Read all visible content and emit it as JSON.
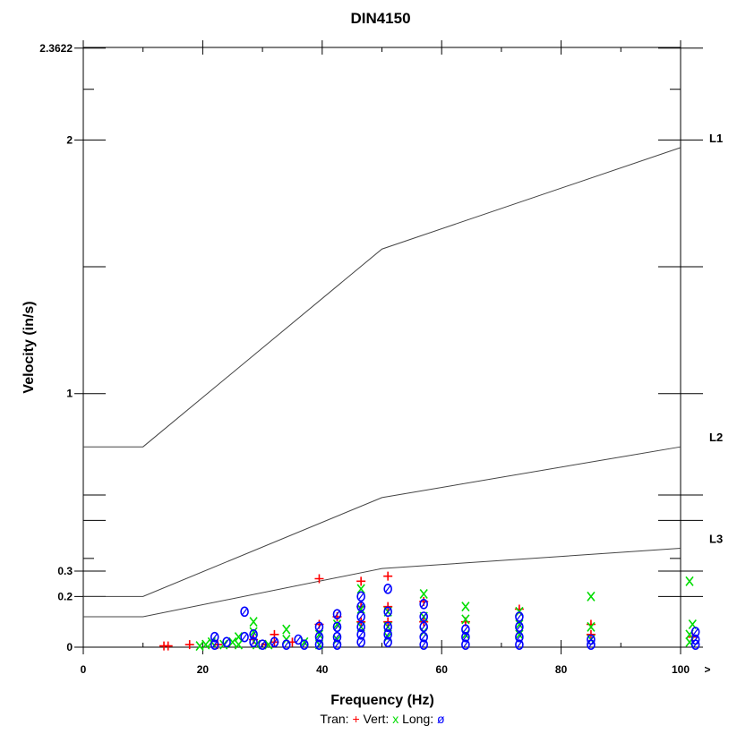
{
  "chart_data": {
    "type": "scatter",
    "title": "DIN4150",
    "xlabel": "Frequency (Hz)",
    "ylabel": "Velocity (in/s)",
    "xlim": [
      0,
      100
    ],
    "ylim": [
      0,
      2.3622
    ],
    "x_ticks": [
      "0",
      "20",
      "40",
      "60",
      "80",
      "100"
    ],
    "x_overflow_label": ">",
    "y_ticks": [
      {
        "value": 0,
        "label": "0"
      },
      {
        "value": 0.2,
        "label": "0.2"
      },
      {
        "value": 0.3,
        "label": "0.3"
      },
      {
        "value": 1,
        "label": "1"
      },
      {
        "value": 2,
        "label": "2"
      },
      {
        "value": 2.3622,
        "label": "2.3622"
      }
    ],
    "y_minor_ticks": [
      0.5,
      0.6,
      1.5
    ],
    "limit_lines": [
      {
        "name": "L1",
        "x": [
          0,
          10,
          50,
          100
        ],
        "y": [
          0.79,
          0.79,
          1.57,
          1.97
        ]
      },
      {
        "name": "L2",
        "x": [
          0,
          10,
          50,
          100
        ],
        "y": [
          0.2,
          0.2,
          0.59,
          0.79
        ]
      },
      {
        "name": "L3",
        "x": [
          0,
          10,
          50,
          100
        ],
        "y": [
          0.12,
          0.12,
          0.31,
          0.39
        ]
      }
    ],
    "legend": {
      "position": "bottom",
      "entries": [
        {
          "label": "Tran:",
          "symbol": "+",
          "color": "#ff0000"
        },
        {
          "label": "Vert:",
          "symbol": "x",
          "color": "#00dd00"
        },
        {
          "label": "Long:",
          "symbol": "ø",
          "color": "#0000ff"
        }
      ]
    },
    "series": [
      {
        "name": "Tran",
        "marker": "+",
        "color": "#ff0000",
        "points": [
          [
            13.5,
            0.005
          ],
          [
            14.2,
            0.005
          ],
          [
            17.8,
            0.01
          ],
          [
            22.5,
            0.01
          ],
          [
            28.5,
            0.03
          ],
          [
            30.5,
            0.01
          ],
          [
            32,
            0.02
          ],
          [
            32,
            0.05
          ],
          [
            35,
            0.02
          ],
          [
            39.5,
            0.27
          ],
          [
            39.5,
            0.09
          ],
          [
            42.5,
            0.12
          ],
          [
            46.5,
            0.26
          ],
          [
            46.5,
            0.16
          ],
          [
            46.5,
            0.1
          ],
          [
            51,
            0.28
          ],
          [
            51,
            0.16
          ],
          [
            51,
            0.1
          ],
          [
            57,
            0.18
          ],
          [
            57,
            0.1
          ],
          [
            64,
            0.1
          ],
          [
            73,
            0.15
          ],
          [
            85,
            0.09
          ],
          [
            85,
            0.05
          ],
          [
            102,
            0.04
          ]
        ]
      },
      {
        "name": "Vert",
        "marker": "x",
        "color": "#00dd00",
        "points": [
          [
            19.5,
            0.005
          ],
          [
            20.5,
            0.01
          ],
          [
            21.5,
            0.02
          ],
          [
            23.5,
            0.01
          ],
          [
            25,
            0.02
          ],
          [
            26,
            0.04
          ],
          [
            26,
            0.01
          ],
          [
            28.5,
            0.1
          ],
          [
            28.5,
            0.06
          ],
          [
            29,
            0.01
          ],
          [
            31,
            0.01
          ],
          [
            34,
            0.07
          ],
          [
            34,
            0.03
          ],
          [
            37,
            0.02
          ],
          [
            39.5,
            0.05
          ],
          [
            39.5,
            0.01
          ],
          [
            42.5,
            0.09
          ],
          [
            42.5,
            0.03
          ],
          [
            46.5,
            0.23
          ],
          [
            46.5,
            0.15
          ],
          [
            46.5,
            0.08
          ],
          [
            51,
            0.14
          ],
          [
            51,
            0.08
          ],
          [
            51,
            0.04
          ],
          [
            57,
            0.21
          ],
          [
            57,
            0.12
          ],
          [
            57,
            0.06
          ],
          [
            64,
            0.16
          ],
          [
            64,
            0.11
          ],
          [
            64,
            0.05
          ],
          [
            73,
            0.14
          ],
          [
            73,
            0.09
          ],
          [
            73,
            0.05
          ],
          [
            85,
            0.2
          ],
          [
            85,
            0.08
          ],
          [
            85,
            0.03
          ],
          [
            101.5,
            0.26
          ],
          [
            102,
            0.09
          ],
          [
            101.5,
            0.05
          ],
          [
            101.5,
            0.02
          ]
        ]
      },
      {
        "name": "Long",
        "marker": "o",
        "color": "#0000ff",
        "points": [
          [
            22,
            0.04
          ],
          [
            22,
            0.01
          ],
          [
            24,
            0.02
          ],
          [
            27,
            0.14
          ],
          [
            27,
            0.04
          ],
          [
            28.5,
            0.05
          ],
          [
            28.5,
            0.02
          ],
          [
            30,
            0.01
          ],
          [
            32,
            0.02
          ],
          [
            34,
            0.01
          ],
          [
            36,
            0.03
          ],
          [
            37,
            0.01
          ],
          [
            39.5,
            0.08
          ],
          [
            39.5,
            0.04
          ],
          [
            39.5,
            0.01
          ],
          [
            42.5,
            0.13
          ],
          [
            42.5,
            0.08
          ],
          [
            42.5,
            0.04
          ],
          [
            42.5,
            0.01
          ],
          [
            46.5,
            0.2
          ],
          [
            46.5,
            0.16
          ],
          [
            46.5,
            0.12
          ],
          [
            46.5,
            0.08
          ],
          [
            46.5,
            0.05
          ],
          [
            46.5,
            0.02
          ],
          [
            51,
            0.23
          ],
          [
            51,
            0.14
          ],
          [
            51,
            0.08
          ],
          [
            51,
            0.05
          ],
          [
            51,
            0.02
          ],
          [
            57,
            0.17
          ],
          [
            57,
            0.12
          ],
          [
            57,
            0.08
          ],
          [
            57,
            0.04
          ],
          [
            57,
            0.01
          ],
          [
            64,
            0.07
          ],
          [
            64,
            0.04
          ],
          [
            64,
            0.01
          ],
          [
            73,
            0.12
          ],
          [
            73,
            0.08
          ],
          [
            73,
            0.04
          ],
          [
            73,
            0.01
          ],
          [
            85,
            0.03
          ],
          [
            85,
            0.01
          ],
          [
            102.5,
            0.06
          ],
          [
            102.5,
            0.03
          ],
          [
            102.5,
            0.01
          ]
        ]
      }
    ]
  }
}
